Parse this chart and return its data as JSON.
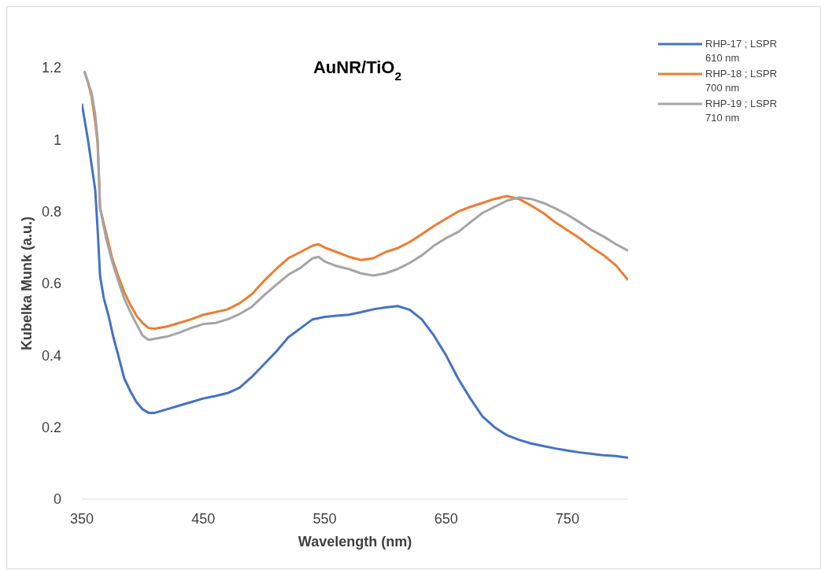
{
  "chart_data": {
    "type": "line",
    "title": "AuNR/TiO$_{2}$",
    "xlabel": "Wavelength (nm)",
    "ylabel": "Kubelka Munk (a.u.)",
    "xlim": [
      350,
      800
    ],
    "xticks": [
      350,
      450,
      550,
      650,
      750
    ],
    "ylim": [
      0,
      1.2
    ],
    "yticks": [
      0,
      0.2,
      0.4,
      0.6,
      0.8,
      1,
      1.2
    ],
    "grid": false,
    "legend": "top right",
    "marker": "none",
    "line_style": "solid",
    "series": [
      {
        "name": "RHP-17 ;  LSPR 610 nm",
        "color": "#4472c4",
        "x": [
          350,
          355,
          358,
          361,
          363,
          365,
          368,
          372,
          376,
          380,
          385,
          390,
          395,
          400,
          405,
          410,
          420,
          430,
          440,
          450,
          460,
          470,
          480,
          490,
          500,
          510,
          520,
          530,
          540,
          550,
          560,
          570,
          580,
          590,
          600,
          610,
          620,
          630,
          640,
          650,
          660,
          670,
          680,
          690,
          700,
          710,
          720,
          730,
          740,
          750,
          760,
          770,
          780,
          790,
          800
        ],
        "values": [
          1.1,
          1.0,
          0.93,
          0.86,
          0.75,
          0.62,
          0.56,
          0.51,
          0.45,
          0.4,
          0.335,
          0.3,
          0.27,
          0.25,
          0.24,
          0.24,
          0.25,
          0.26,
          0.27,
          0.28,
          0.287,
          0.295,
          0.31,
          0.34,
          0.375,
          0.41,
          0.45,
          0.475,
          0.5,
          0.507,
          0.51,
          0.513,
          0.52,
          0.528,
          0.533,
          0.537,
          0.527,
          0.5,
          0.455,
          0.4,
          0.335,
          0.28,
          0.23,
          0.2,
          0.178,
          0.165,
          0.155,
          0.148,
          0.141,
          0.135,
          0.13,
          0.126,
          0.122,
          0.12,
          0.115
        ]
      },
      {
        "name": "RHP-18 ;  LSPR 700 nm",
        "color": "#ed7d31",
        "x": [
          352,
          355,
          358,
          361,
          363,
          365,
          370,
          375,
          380,
          385,
          390,
          395,
          400,
          405,
          410,
          420,
          430,
          440,
          450,
          460,
          470,
          480,
          490,
          500,
          510,
          520,
          530,
          540,
          545,
          550,
          560,
          570,
          580,
          590,
          600,
          610,
          620,
          630,
          640,
          650,
          660,
          670,
          680,
          690,
          700,
          710,
          720,
          730,
          740,
          750,
          760,
          770,
          780,
          790,
          800
        ],
        "values": [
          1.19,
          1.16,
          1.12,
          1.05,
          0.99,
          0.81,
          0.74,
          0.67,
          0.62,
          0.575,
          0.54,
          0.51,
          0.49,
          0.476,
          0.474,
          0.48,
          0.49,
          0.5,
          0.513,
          0.52,
          0.528,
          0.545,
          0.57,
          0.607,
          0.64,
          0.67,
          0.687,
          0.705,
          0.709,
          0.7,
          0.687,
          0.674,
          0.665,
          0.67,
          0.687,
          0.698,
          0.715,
          0.737,
          0.76,
          0.78,
          0.8,
          0.813,
          0.824,
          0.835,
          0.843,
          0.835,
          0.817,
          0.796,
          0.77,
          0.748,
          0.726,
          0.7,
          0.678,
          0.65,
          0.609
        ]
      },
      {
        "name": "RHP-19 ;  LSPR 710 nm",
        "color": "#a5a5a5",
        "x": [
          352,
          355,
          358,
          361,
          363,
          365,
          370,
          375,
          380,
          385,
          390,
          395,
          400,
          405,
          410,
          420,
          430,
          440,
          450,
          460,
          470,
          480,
          490,
          500,
          510,
          520,
          530,
          540,
          545,
          550,
          560,
          570,
          580,
          590,
          600,
          610,
          620,
          630,
          640,
          650,
          660,
          670,
          680,
          690,
          700,
          710,
          720,
          730,
          740,
          750,
          760,
          770,
          780,
          790,
          800
        ],
        "values": [
          1.19,
          1.16,
          1.13,
          1.07,
          1.0,
          0.81,
          0.725,
          0.66,
          0.607,
          0.557,
          0.52,
          0.487,
          0.455,
          0.443,
          0.446,
          0.452,
          0.463,
          0.476,
          0.487,
          0.49,
          0.5,
          0.515,
          0.535,
          0.567,
          0.596,
          0.624,
          0.643,
          0.67,
          0.674,
          0.661,
          0.648,
          0.64,
          0.628,
          0.622,
          0.628,
          0.64,
          0.657,
          0.678,
          0.705,
          0.726,
          0.743,
          0.77,
          0.796,
          0.813,
          0.83,
          0.839,
          0.835,
          0.824,
          0.809,
          0.791,
          0.77,
          0.748,
          0.73,
          0.709,
          0.691
        ]
      }
    ]
  }
}
